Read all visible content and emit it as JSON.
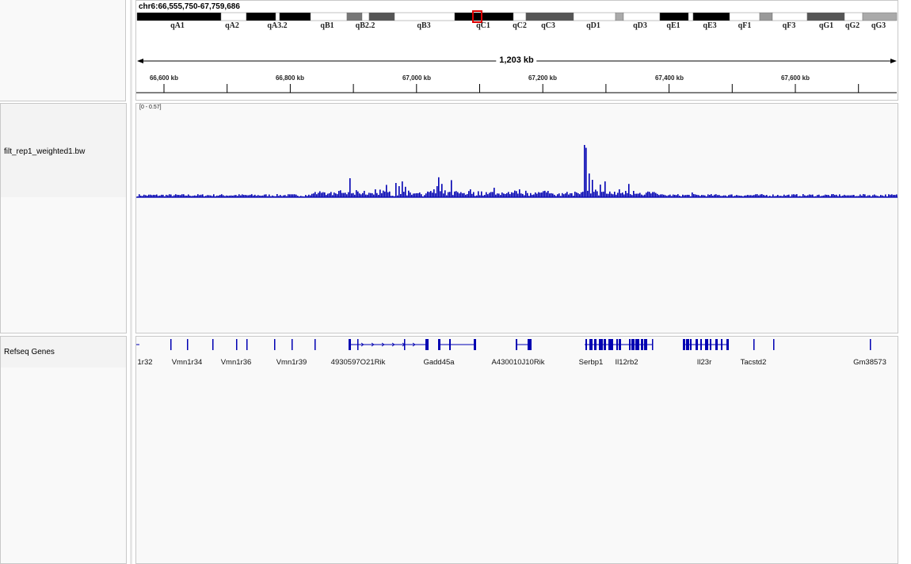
{
  "locus": "chr6:66,555,750-67,759,686",
  "span_label": "1,203 kb",
  "cytobands": [
    "qA1",
    "qA2",
    "qA3.2",
    "qB1",
    "qB2.2",
    "qB3",
    "qC1",
    "qC2",
    "qC3",
    "qD1",
    "qD3",
    "qE1",
    "qE3",
    "qF1",
    "qF3",
    "qG1",
    "qG2",
    "qG3"
  ],
  "ruler_ticks": [
    "66,600 kb",
    "66,800 kb",
    "67,000 kb",
    "67,200 kb",
    "67,400 kb",
    "67,600 kb"
  ],
  "tracks": {
    "signal": {
      "name": "filt_rep1_weighted1.bw",
      "range": "[0 - 0.57]",
      "color": "#0000b2"
    },
    "genes": {
      "name": "Refseq Genes",
      "color": "#0000b2",
      "labels": [
        "1r32",
        "Vmn1r34",
        "Vmn1r36",
        "Vmn1r39",
        "4930597O21Rik",
        "Gadd45a",
        "A430010J10Rik",
        "Serbp1",
        "Il12rb2",
        "Il23r",
        "Tacstd2",
        "Gm38573"
      ]
    }
  }
}
